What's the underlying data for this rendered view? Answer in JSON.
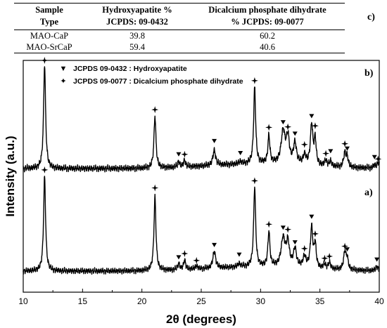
{
  "table": {
    "headers": [
      {
        "line1": "Sample",
        "line2": "Type"
      },
      {
        "line1": "Hydroxyapatite %",
        "line2": "JCPDS: 09-0432"
      },
      {
        "line1": "Dicalcium phosphate dihydrate",
        "line2": "% JCPDS: 09-0077"
      }
    ],
    "rows": [
      [
        "MAO-CaP",
        "39.8",
        "60.2"
      ],
      [
        "MAO-SrCaP",
        "59.4",
        "40.6"
      ]
    ],
    "panel_label": "c)"
  },
  "chart_data": {
    "type": "line",
    "xlabel": "2θ (degrees)",
    "ylabel": "Intensity (a.u.)",
    "xlim": [
      10,
      40
    ],
    "x_ticks": [
      "10",
      "15",
      "20",
      "25",
      "30",
      "35",
      "40"
    ],
    "legend": [
      {
        "symbol": "▼",
        "text": "JCPDS 09-0432 : Hydroxyapatite"
      },
      {
        "symbol": "✦",
        "text": "JCPDS 09-0077 : Dicalcium phosphate dihydrate"
      }
    ],
    "series": [
      {
        "name": "b)",
        "baseline": 0.3,
        "peaks": [
          {
            "x": 11.8,
            "h": 0.9,
            "w": 0.1,
            "marker": "plus"
          },
          {
            "x": 21.1,
            "h": 0.45,
            "w": 0.1,
            "marker": "plus"
          },
          {
            "x": 23.1,
            "h": 0.05,
            "w": 0.1,
            "marker": "tri"
          },
          {
            "x": 23.6,
            "h": 0.06,
            "w": 0.1,
            "marker": "plus"
          },
          {
            "x": 26.1,
            "h": 0.13,
            "w": 0.14,
            "marker": "tri"
          },
          {
            "x": 28.3,
            "h": 0.02,
            "w": 0.15,
            "marker": "tri"
          },
          {
            "x": 29.5,
            "h": 0.66,
            "w": 0.1,
            "marker": "plus"
          },
          {
            "x": 30.7,
            "h": 0.24,
            "w": 0.1,
            "marker": "plus"
          },
          {
            "x": 31.9,
            "h": 0.28,
            "w": 0.2,
            "marker": "tri"
          },
          {
            "x": 32.3,
            "h": 0.22,
            "w": 0.15,
            "marker": "plus"
          },
          {
            "x": 32.9,
            "h": 0.18,
            "w": 0.15,
            "marker": "tri"
          },
          {
            "x": 33.7,
            "h": 0.08,
            "w": 0.15,
            "marker": "plus"
          },
          {
            "x": 34.3,
            "h": 0.35,
            "w": 0.12,
            "marker": "tri"
          },
          {
            "x": 34.6,
            "h": 0.22,
            "w": 0.1,
            "marker": "plus"
          },
          {
            "x": 35.5,
            "h": 0.05,
            "w": 0.12,
            "marker": "plus"
          },
          {
            "x": 35.9,
            "h": 0.04,
            "w": 0.12,
            "marker": "tri"
          },
          {
            "x": 37.1,
            "h": 0.12,
            "w": 0.12,
            "marker": "plus"
          },
          {
            "x": 37.3,
            "h": 0.08,
            "w": 0.1,
            "marker": "tri"
          },
          {
            "x": 39.6,
            "h": 0.02,
            "w": 0.15,
            "marker": "tri"
          },
          {
            "x": 39.9,
            "h": 0.05,
            "w": 0.1,
            "marker": "plus"
          }
        ]
      },
      {
        "name": "a)",
        "baseline": 0.3,
        "peaks": [
          {
            "x": 11.8,
            "h": 0.9,
            "w": 0.1,
            "marker": "plus"
          },
          {
            "x": 21.1,
            "h": 0.7,
            "w": 0.1,
            "marker": "plus"
          },
          {
            "x": 23.1,
            "h": 0.06,
            "w": 0.1,
            "marker": "tri"
          },
          {
            "x": 23.6,
            "h": 0.09,
            "w": 0.1,
            "marker": "plus"
          },
          {
            "x": 24.6,
            "h": 0.03,
            "w": 0.12,
            "marker": "plus"
          },
          {
            "x": 26.1,
            "h": 0.16,
            "w": 0.14,
            "marker": "tri"
          },
          {
            "x": 28.2,
            "h": 0.03,
            "w": 0.15,
            "marker": "tri"
          },
          {
            "x": 29.5,
            "h": 0.76,
            "w": 0.1,
            "marker": "plus"
          },
          {
            "x": 30.7,
            "h": 0.33,
            "w": 0.1,
            "marker": "plus"
          },
          {
            "x": 31.9,
            "h": 0.27,
            "w": 0.2,
            "marker": "tri"
          },
          {
            "x": 32.3,
            "h": 0.22,
            "w": 0.15,
            "marker": "plus"
          },
          {
            "x": 32.9,
            "h": 0.17,
            "w": 0.15,
            "marker": "tri"
          },
          {
            "x": 33.7,
            "h": 0.1,
            "w": 0.15,
            "marker": "plus"
          },
          {
            "x": 34.3,
            "h": 0.38,
            "w": 0.12,
            "marker": "tri"
          },
          {
            "x": 34.6,
            "h": 0.22,
            "w": 0.1,
            "marker": "plus"
          },
          {
            "x": 35.4,
            "h": 0.04,
            "w": 0.12,
            "marker": "plus"
          },
          {
            "x": 35.8,
            "h": 0.06,
            "w": 0.12,
            "marker": "plus"
          },
          {
            "x": 37.1,
            "h": 0.17,
            "w": 0.12,
            "marker": "plus"
          },
          {
            "x": 37.3,
            "h": 0.1,
            "w": 0.1,
            "marker": "tri"
          },
          {
            "x": 39.8,
            "h": 0.04,
            "w": 0.12,
            "marker": "tri"
          }
        ]
      }
    ],
    "grid": false
  }
}
